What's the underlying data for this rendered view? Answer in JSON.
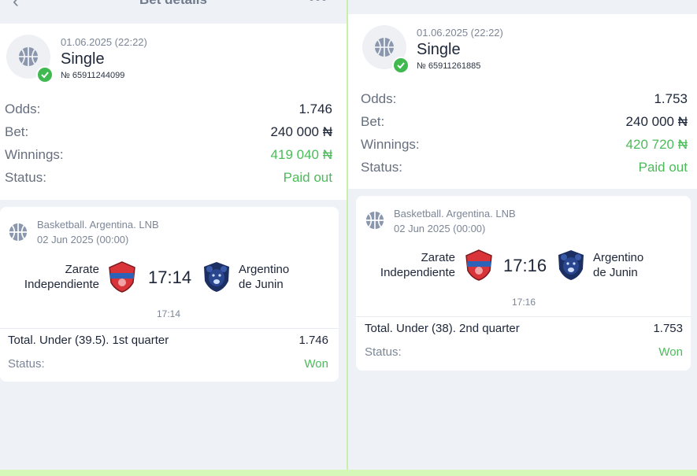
{
  "left": {
    "header_title": "Bet details",
    "bet": {
      "date": "01.06.2025 (22:22)",
      "type": "Single",
      "number": "№ 65911244099"
    },
    "rows": [
      {
        "key": "Odds:",
        "value": "1.746"
      },
      {
        "key": "Bet:",
        "value": "240 000 ₦"
      },
      {
        "key": "Winnings:",
        "value": "419 040 ₦"
      },
      {
        "key": "Status:",
        "value": "Paid out"
      }
    ],
    "event": {
      "league": "Basketball. Argentina. LNB",
      "date": "02 Jun 2025 (00:00)",
      "home_line1": "Zarate",
      "home_line2": "Independiente",
      "score": "17:14",
      "away_line1": "Argentino",
      "away_line2": "de Junin",
      "period_score": "17:14",
      "outcome": "Total. Under (39.5). 1st quarter",
      "outcome_coef": "1.746",
      "status_label": "Status:",
      "status_value": "Won"
    }
  },
  "right": {
    "bet": {
      "date": "01.06.2025 (22:22)",
      "type": "Single",
      "number": "№ 65911261885"
    },
    "rows": [
      {
        "key": "Odds:",
        "value": "1.753"
      },
      {
        "key": "Bet:",
        "value": "240 000 ₦"
      },
      {
        "key": "Winnings:",
        "value": "420 720 ₦"
      },
      {
        "key": "Status:",
        "value": "Paid out"
      }
    ],
    "event": {
      "league": "Basketball. Argentina. LNB",
      "date": "02 Jun 2025 (00:00)",
      "home_line1": "Zarate",
      "home_line2": "Independiente",
      "score": "17:16",
      "away_line1": "Argentino",
      "away_line2": "de Junin",
      "period_score": "17:16",
      "outcome": "Total. Under (38). 2nd quarter",
      "outcome_coef": "1.753",
      "status_label": "Status:",
      "status_value": "Won"
    }
  },
  "colors": {
    "win_green": "#4cbb5a",
    "check_green": "#3fb950",
    "crest_red": "#d9343a",
    "crest_navy": "#1c2f63"
  },
  "icons": [
    "back-chevron-icon",
    "more-dots-icon",
    "basketball-icon",
    "checkmark-icon",
    "zarate-crest-icon",
    "argentino-bear-crest-icon"
  ]
}
